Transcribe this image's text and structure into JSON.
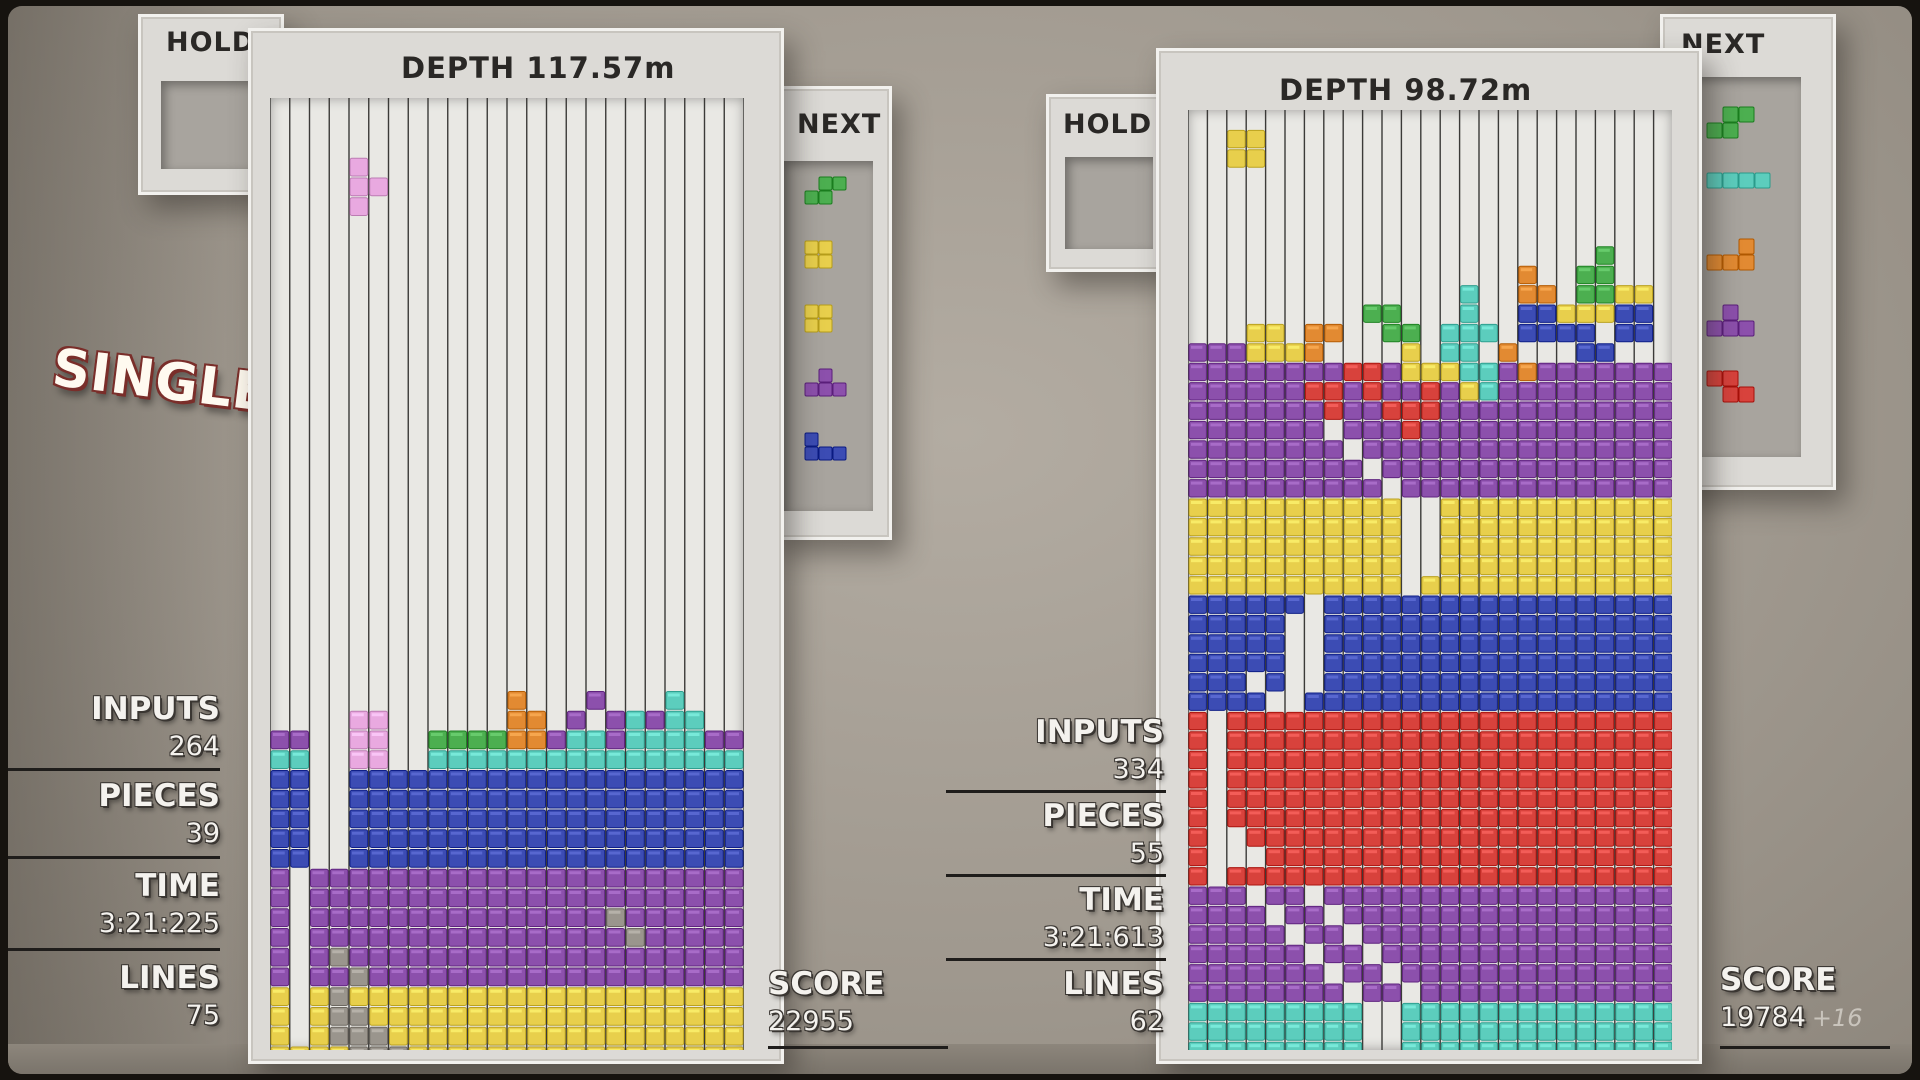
{
  "mode_label": "SINGLE",
  "players": [
    {
      "hold_label": "HOLD",
      "next_label": "NEXT",
      "depth_label": "DEPTH",
      "depth_value": "117.57m",
      "score_label": "SCORE",
      "score_value": "22955",
      "stats": [
        {
          "label": "INPUTS",
          "value": "264"
        },
        {
          "label": "PIECES",
          "value": "39"
        },
        {
          "label": "TIME",
          "value": "3:21:225"
        },
        {
          "label": "LINES",
          "value": "75"
        }
      ],
      "next_queue_icons": [
        "s-piece-icon",
        "o-piece-icon",
        "o-piece-icon",
        "t-piece-icon",
        "j-piece-icon"
      ],
      "active_piece": "t-piece",
      "colors": {
        "blue": "#3c4cb4",
        "purple": "#8c50ac",
        "yellow": "#e8cf4c",
        "cyan": "#5ccdbd",
        "green": "#4caf50",
        "orange": "#e28a32",
        "pink": "#e9a9e0"
      }
    },
    {
      "hold_label": "HOLD",
      "next_label": "NEXT",
      "depth_label": "DEPTH",
      "depth_value": "98.72m",
      "score_label": "SCORE",
      "score_value": "19784",
      "score_bonus": "+16",
      "stats": [
        {
          "label": "INPUTS",
          "value": "334"
        },
        {
          "label": "PIECES",
          "value": "55"
        },
        {
          "label": "TIME",
          "value": "3:21:613"
        },
        {
          "label": "LINES",
          "value": "62"
        }
      ],
      "next_queue_icons": [
        "s-piece-icon",
        "i-piece-icon",
        "l-piece-icon",
        "t-piece-icon",
        "z-piece-icon"
      ],
      "active_piece": "o-piece",
      "colors": {
        "blue": "#3c4cb4",
        "purple": "#8c50ac",
        "yellow": "#e8cf4c",
        "cyan": "#5ccdbd",
        "red": "#d8423c",
        "orange": "#e28a32",
        "green": "#4caf50"
      }
    }
  ]
}
